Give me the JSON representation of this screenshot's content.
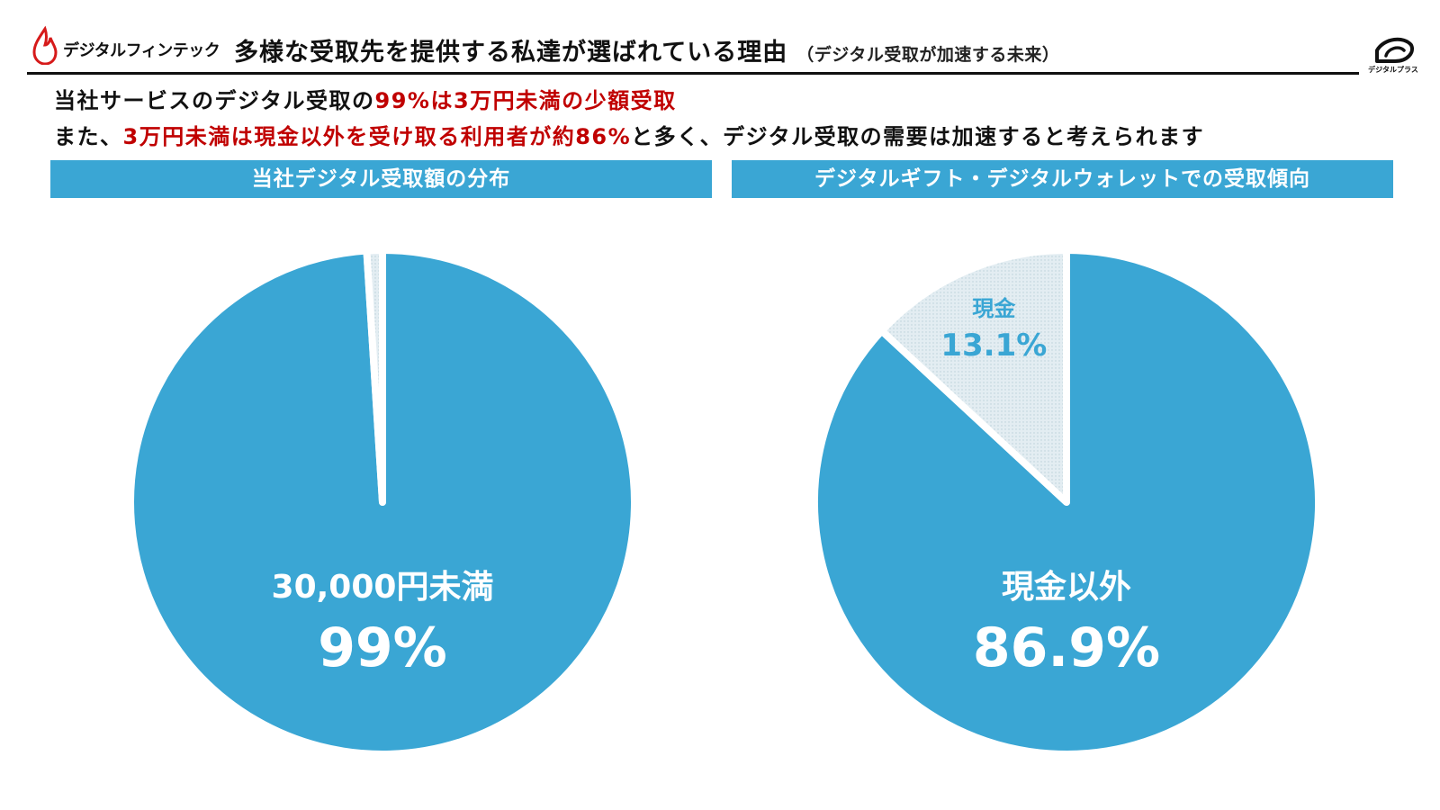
{
  "header": {
    "brand_name": "デジタルフィンテック",
    "title": "多様な受取先を提供する私達が選ばれている理由",
    "subtitle": "（デジタル受取が加速する未来）",
    "logo_text": "デジタルプラス"
  },
  "lead": {
    "line1_black": "当社サービスのデジタル受取の",
    "line1_red": "99%は3万円未満の少額受取",
    "line2_black_a": "また、",
    "line2_red": "3万円未満は現金以外を受け取る利用者が約86%",
    "line2_black_b": "と多く、デジタル受取の需要は加速すると考えられます"
  },
  "colors": {
    "accent": "#3aa6d4",
    "emphasis": "#c00000",
    "minor_slice": "#e3edf2"
  },
  "chart_data": [
    {
      "type": "pie",
      "title": "当社デジタル受取額の分布",
      "slices": [
        {
          "label": "30,000円未満",
          "value": 99,
          "value_label": "99%",
          "color": "#3aa6d4"
        },
        {
          "label": "",
          "value": 1,
          "value_label": "",
          "color": "#e3edf2"
        }
      ]
    },
    {
      "type": "pie",
      "title": "デジタルギフト・デジタルウォレットでの受取傾向",
      "slices": [
        {
          "label": "現金以外",
          "value": 86.9,
          "value_label": "86.9%",
          "color": "#3aa6d4"
        },
        {
          "label": "現金",
          "value": 13.1,
          "value_label": "13.1%",
          "color": "#e3edf2"
        }
      ]
    }
  ]
}
